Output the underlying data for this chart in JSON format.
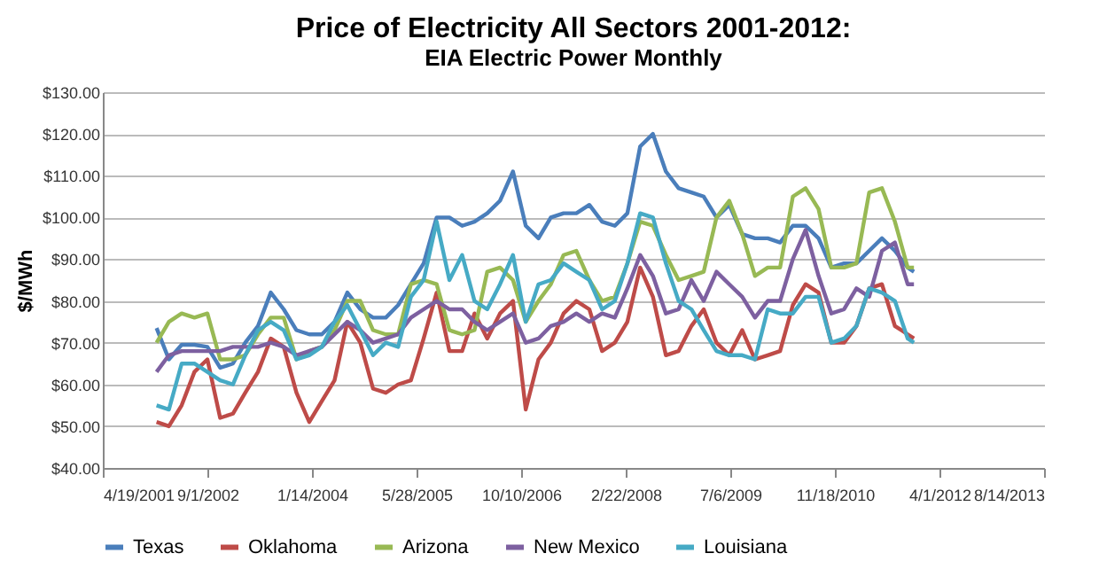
{
  "chart_data": {
    "type": "line",
    "title": "Price of Electricity All Sectors 2001-2012:",
    "subtitle": "EIA Electric Power Monthly",
    "ylabel": "$/MWh",
    "x": [
      "2002-01",
      "2002-03",
      "2002-05",
      "2002-07",
      "2002-09",
      "2002-11",
      "2003-01",
      "2003-03",
      "2003-05",
      "2003-07",
      "2003-09",
      "2003-11",
      "2004-01",
      "2004-03",
      "2004-05",
      "2004-07",
      "2004-09",
      "2004-11",
      "2005-01",
      "2005-03",
      "2005-05",
      "2005-07",
      "2005-09",
      "2005-11",
      "2006-01",
      "2006-03",
      "2006-05",
      "2006-07",
      "2006-09",
      "2006-11",
      "2007-01",
      "2007-03",
      "2007-05",
      "2007-07",
      "2007-09",
      "2007-11",
      "2008-01",
      "2008-03",
      "2008-05",
      "2008-07",
      "2008-09",
      "2008-11",
      "2009-01",
      "2009-03",
      "2009-05",
      "2009-07",
      "2009-09",
      "2009-11",
      "2010-01",
      "2010-03",
      "2010-05",
      "2010-07",
      "2010-09",
      "2010-11",
      "2011-01",
      "2011-03",
      "2011-05",
      "2011-07",
      "2011-09",
      "2011-11",
      "2011-12"
    ],
    "series": [
      {
        "name": "Texas",
        "color": "#4a7ebb",
        "values": [
          73.5,
          66,
          69.5,
          69.5,
          69,
          64,
          65,
          70,
          74,
          82,
          78,
          73,
          72,
          72,
          75,
          82,
          78,
          76,
          76,
          79,
          84,
          89,
          100,
          100,
          98,
          99,
          101,
          104,
          111,
          98,
          95,
          100,
          101,
          101,
          103,
          99,
          98,
          101,
          117,
          120,
          111,
          107,
          106,
          105,
          100,
          103,
          96,
          95,
          95,
          94,
          98,
          98,
          95,
          88,
          89,
          89,
          92,
          95,
          92,
          88,
          87
        ]
      },
      {
        "name": "Oklahoma",
        "color": "#be4b48",
        "values": [
          51,
          50,
          55,
          63,
          66,
          52,
          53,
          58,
          63,
          71,
          69,
          58,
          51,
          56,
          61,
          75,
          70,
          59,
          58,
          60,
          61,
          71,
          82,
          68,
          68,
          77,
          71,
          77,
          80,
          54,
          66,
          70,
          77,
          80,
          78,
          68,
          70,
          75,
          88,
          81,
          67,
          68,
          74,
          78,
          70,
          67,
          73,
          66,
          67,
          68,
          79,
          84,
          82,
          70,
          70,
          74,
          83,
          84,
          74,
          72,
          71
        ]
      },
      {
        "name": "Arizona",
        "color": "#98b954",
        "values": [
          70,
          75,
          77,
          76,
          77,
          66,
          66,
          67,
          72,
          76,
          76,
          66,
          68,
          69,
          73,
          80,
          80,
          73,
          72,
          72,
          84,
          85,
          84,
          73,
          72,
          73,
          87,
          88,
          85,
          75,
          80,
          84,
          91,
          92,
          85,
          80,
          81,
          89,
          99,
          98,
          91,
          85,
          86,
          87,
          100,
          104,
          96,
          86,
          88,
          88,
          105,
          107,
          102,
          88,
          88,
          89,
          106,
          107,
          99,
          88,
          88
        ]
      },
      {
        "name": "New Mexico",
        "color": "#7d60a0",
        "values": [
          63,
          67,
          68,
          68,
          68,
          68,
          69,
          69,
          69,
          70,
          69,
          67,
          68,
          69,
          72,
          75,
          73,
          70,
          71,
          72,
          76,
          78,
          80,
          78,
          78,
          75,
          73,
          75,
          77,
          70,
          71,
          74,
          75,
          77,
          75,
          77,
          76,
          83,
          91,
          86,
          77,
          78,
          85,
          80,
          87,
          84,
          81,
          76,
          80,
          80,
          90,
          97,
          86,
          77,
          78,
          83,
          81,
          92,
          94,
          84,
          84
        ]
      },
      {
        "name": "Louisiana",
        "color": "#46aac5",
        "values": [
          55,
          54,
          65,
          65,
          63,
          61,
          60,
          67,
          73,
          75,
          73,
          66,
          67,
          69,
          75,
          79,
          73,
          67,
          70,
          69,
          81,
          85,
          99,
          85,
          91,
          80,
          78,
          84,
          91,
          75,
          84,
          85,
          89,
          87,
          85,
          78,
          80,
          89,
          101,
          100,
          89,
          80,
          78,
          73,
          68,
          67,
          67,
          66,
          78,
          77,
          77,
          81,
          81,
          70,
          71,
          74,
          83,
          82,
          80,
          71,
          70
        ]
      }
    ],
    "xlim": [
      "2001-04-19",
      "2013-08-14"
    ],
    "xticks": [
      {
        "value": "2001-04-19",
        "label": "4/19/2001"
      },
      {
        "value": "2002-09-01",
        "label": "9/1/2002"
      },
      {
        "value": "2004-01-14",
        "label": "1/14/2004"
      },
      {
        "value": "2005-05-28",
        "label": "5/28/2005"
      },
      {
        "value": "2006-10-10",
        "label": "10/10/2006"
      },
      {
        "value": "2008-02-22",
        "label": "2/22/2008"
      },
      {
        "value": "2009-07-06",
        "label": "7/6/2009"
      },
      {
        "value": "2010-11-18",
        "label": "11/18/2010"
      },
      {
        "value": "2012-04-01",
        "label": "4/1/2012"
      },
      {
        "value": "2013-08-14",
        "label": "8/14/2013"
      }
    ],
    "ylim": [
      40,
      130
    ],
    "yticks": [
      {
        "value": 40,
        "label": "$40.00"
      },
      {
        "value": 50,
        "label": "$50.00"
      },
      {
        "value": 60,
        "label": "$60.00"
      },
      {
        "value": 70,
        "label": "$70.00"
      },
      {
        "value": 80,
        "label": "$80.00"
      },
      {
        "value": 90,
        "label": "$90.00"
      },
      {
        "value": 100,
        "label": "$100.00"
      },
      {
        "value": 110,
        "label": "$110.00"
      },
      {
        "value": 120,
        "label": "$120.00"
      },
      {
        "value": 130,
        "label": "$130.00"
      }
    ],
    "grid": "y",
    "legend": "bottom",
    "marker": "none",
    "line_style": "solid"
  }
}
